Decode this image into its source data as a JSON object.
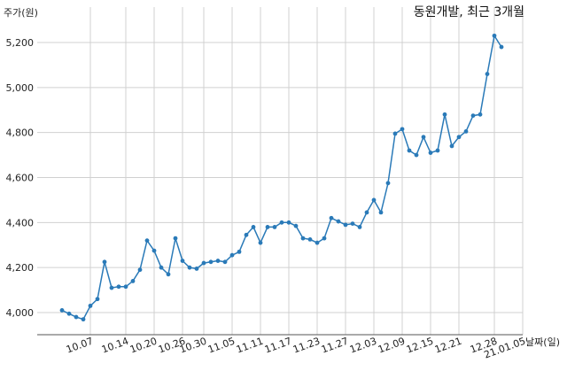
{
  "chart_data": {
    "type": "line",
    "title": "동원개발, 최근 3개월",
    "xlabel": "날짜(일)",
    "ylabel": "주가(원)",
    "ylim": [
      3900,
      5300
    ],
    "yticks": [
      4000,
      4200,
      4400,
      4600,
      4800,
      5000,
      5200
    ],
    "ytick_labels": [
      "4,000",
      "4,200",
      "4,400",
      "4,600",
      "4,800",
      "5,000",
      "5,200"
    ],
    "xtick_labels": [
      "10.07",
      "10.14",
      "10.20",
      "10.26",
      "10.30",
      "11.05",
      "11.11",
      "11.17",
      "11.23",
      "11.27",
      "12.03",
      "12.09",
      "12.15",
      "12.21",
      "12.28",
      "21.01.05"
    ],
    "xtick_index": [
      4,
      9,
      13,
      17,
      20,
      24,
      28,
      32,
      36,
      40,
      44,
      48,
      52,
      56,
      61,
      65
    ],
    "grid": true,
    "series_color": "#2a7ab8",
    "series": [
      {
        "values": [
          4010,
          3995,
          3980,
          3970,
          4030,
          4060,
          4225,
          4110,
          4115,
          4115,
          4140,
          4190,
          4320,
          4275,
          4200,
          4170,
          4330,
          4230,
          4200,
          4195,
          4220,
          4225,
          4230,
          4225,
          4255,
          4270,
          4345,
          4380,
          4310,
          4380,
          4380,
          4400,
          4400,
          4385,
          4330,
          4325,
          4310,
          4330,
          4420,
          4405,
          4390,
          4395,
          4380,
          4445,
          4500,
          4445,
          4575,
          4795,
          4815,
          4720,
          4700,
          4780,
          4710,
          4720,
          4880,
          4740,
          4780,
          4805,
          4875,
          4880,
          5060,
          5230,
          5180
        ]
      }
    ]
  }
}
